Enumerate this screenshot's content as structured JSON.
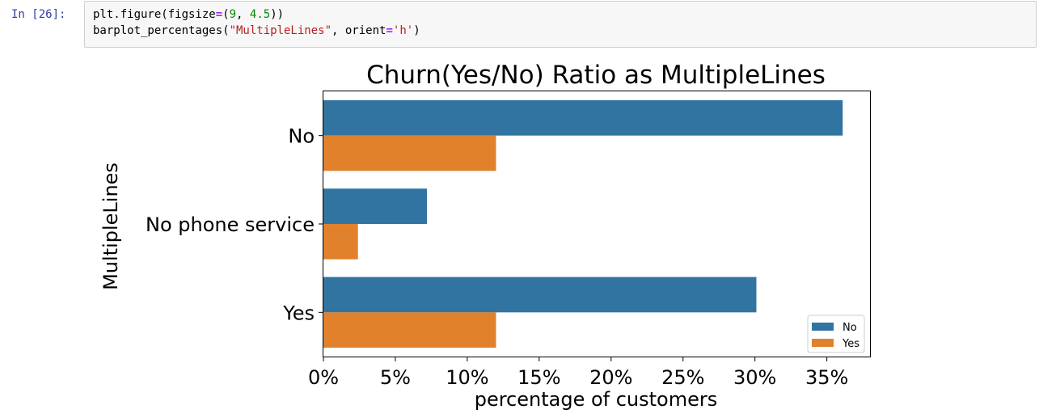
{
  "cell": {
    "prompt": "In [26]:",
    "line1": {
      "a": "plt.figure(figsize",
      "op": "=",
      "b": "(",
      "n1": "9",
      "c": ", ",
      "n2": "4.5",
      "d": "))"
    },
    "line2": {
      "a": "barplot_percentages(",
      "s1": "\"MultipleLines\"",
      "b": ", orient",
      "op": "=",
      "s2": "'h'",
      "c": ")"
    }
  },
  "colors": {
    "No": "#3274a1",
    "Yes": "#e1812c"
  },
  "chart_data": {
    "type": "bar",
    "orientation": "horizontal",
    "title": "Churn(Yes/No) Ratio as MultipleLines",
    "xlabel": "percentage of customers",
    "ylabel": "MultipleLines",
    "categories": [
      "No",
      "No phone service",
      "Yes"
    ],
    "series": [
      {
        "name": "No",
        "values": [
          36.1,
          7.2,
          30.1
        ]
      },
      {
        "name": "Yes",
        "values": [
          12.0,
          2.4,
          12.0
        ]
      }
    ],
    "xlim": [
      0,
      38
    ],
    "xticks": [
      0,
      5,
      10,
      15,
      20,
      25,
      30,
      35
    ],
    "xtick_labels": [
      "0%",
      "5%",
      "10%",
      "15%",
      "20%",
      "25%",
      "30%",
      "35%"
    ],
    "grid": false,
    "legend": {
      "position": "bottom-right",
      "entries": [
        "No",
        "Yes"
      ]
    }
  }
}
